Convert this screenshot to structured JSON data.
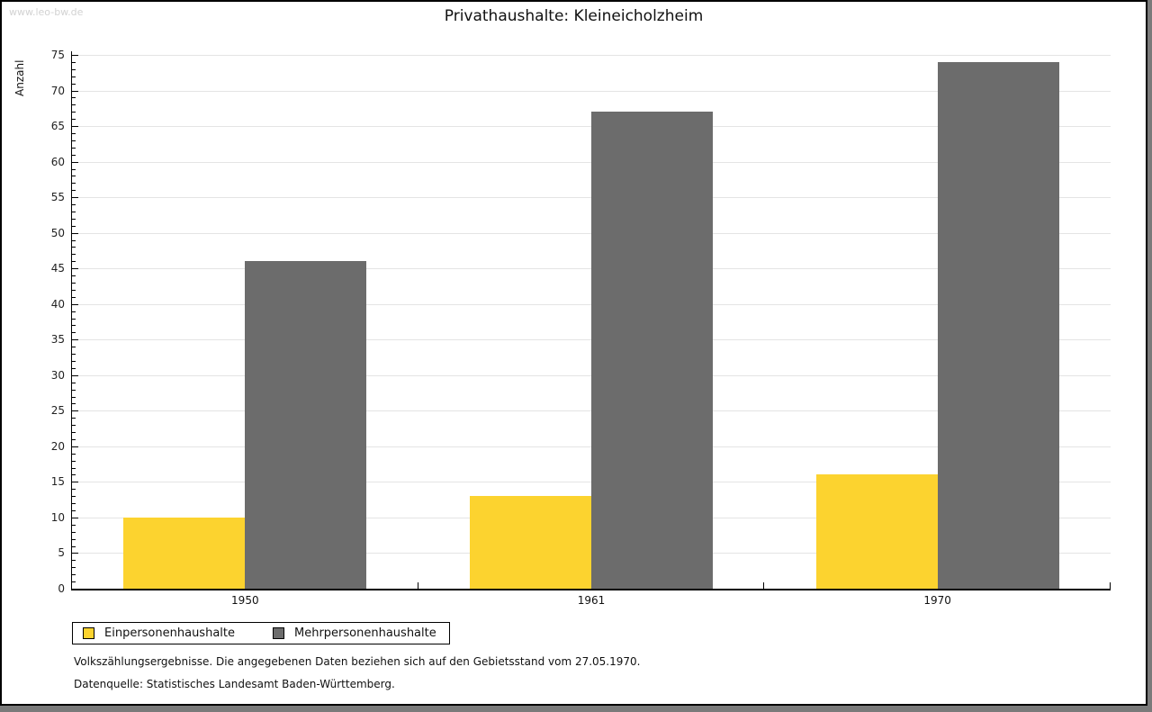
{
  "watermark": "www.leo-bw.de",
  "title": "Privathaushalte: Kleineicholzheim",
  "chart_data": {
    "type": "bar",
    "title": "Privathaushalte: Kleineicholzheim",
    "xlabel": "",
    "ylabel": "Anzahl",
    "categories": [
      "1950",
      "1961",
      "1970"
    ],
    "series": [
      {
        "name": "Einpersonenhaushalte",
        "color": "#FCD32F",
        "values": [
          10,
          13,
          16
        ]
      },
      {
        "name": "Mehrpersonenhaushalte",
        "color": "#6C6C6C",
        "values": [
          46,
          67,
          74
        ]
      }
    ],
    "ylim": [
      0,
      75
    ],
    "ytick_step": 5,
    "minor_tick_step": 1,
    "grid": "horizontal",
    "legend_position": "bottom-left"
  },
  "footnotes": [
    "Volkszählungsergebnisse. Die angegebenen Daten beziehen sich auf den Gebietsstand vom 27.05.1970.",
    "Datenquelle: Statistisches Landesamt Baden-Württemberg."
  ]
}
